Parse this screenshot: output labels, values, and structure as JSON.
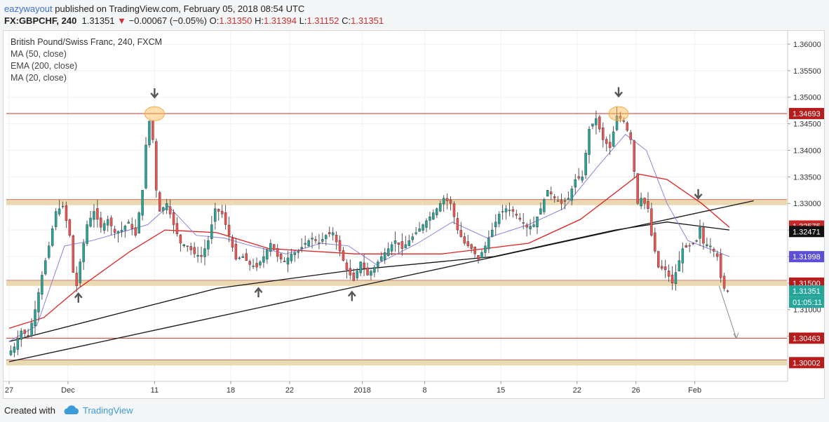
{
  "header": {
    "author": "eazywayout",
    "published_text": "published on TradingView.com, February 05, 2018 08:54 UTC",
    "symbol": "FX:GBPCHF, 240",
    "last": "1.31351",
    "change_arrow": "▼",
    "change": "−0.00067 (−0.05%)",
    "open_label": "O:",
    "open": "1.31350",
    "high_label": "H:",
    "high": "1.31394",
    "low_label": "L:",
    "low": "1.31152",
    "close_label": "C:",
    "close": "1.31351"
  },
  "legend": {
    "title": "British Pound/Swiss Franc, 240, FXCM",
    "ind1": "MA (50, close)",
    "ind2": "EMA (200, close)",
    "ind3": "MA (20, close)"
  },
  "footer": {
    "created_with": "Created with",
    "brand": "TradingView"
  },
  "colors": {
    "bull": "#26a69a",
    "bear": "#ef5350",
    "ma50": "#e02020",
    "ema200": "#111111",
    "ma20": "#8a7fe0",
    "resistance": "#c0392b",
    "zone": "#e8d5a8",
    "trendline": "#222222"
  },
  "chart_data": {
    "type": "candlestick",
    "instrument": "British Pound/Swiss Franc",
    "timeframe": "240",
    "ylim": [
      1.2965,
      1.3625
    ],
    "y_ticks": [
      "1.36000",
      "1.35500",
      "1.35000",
      "1.34500",
      "1.34000",
      "1.33500",
      "1.33000",
      "1.32500",
      "1.32000",
      "1.31500",
      "1.31000",
      "1.30500"
    ],
    "x_ticks": [
      {
        "label": "27",
        "bar": 0
      },
      {
        "label": "Dec",
        "bar": 17
      },
      {
        "label": "11",
        "bar": 42
      },
      {
        "label": "18",
        "bar": 64
      },
      {
        "label": "22",
        "bar": 81
      },
      {
        "label": "2018",
        "bar": 102
      },
      {
        "label": "8",
        "bar": 120
      },
      {
        "label": "15",
        "bar": 142
      },
      {
        "label": "22",
        "bar": 164
      },
      {
        "label": "26",
        "bar": 181
      },
      {
        "label": "Feb",
        "bar": 198
      }
    ],
    "total_bars": 208,
    "price_path": [
      [
        0,
        1.3015
      ],
      [
        2,
        1.303
      ],
      [
        4,
        1.306
      ],
      [
        6,
        1.305
      ],
      [
        8,
        1.31
      ],
      [
        10,
        1.3165
      ],
      [
        12,
        1.322
      ],
      [
        14,
        1.3285
      ],
      [
        16,
        1.3295
      ],
      [
        18,
        1.324
      ],
      [
        19,
        1.317
      ],
      [
        20,
        1.3145
      ],
      [
        21,
        1.319
      ],
      [
        23,
        1.326
      ],
      [
        25,
        1.3285
      ],
      [
        27,
        1.3255
      ],
      [
        29,
        1.327
      ],
      [
        31,
        1.3245
      ],
      [
        33,
        1.325
      ],
      [
        35,
        1.3265
      ],
      [
        37,
        1.324
      ],
      [
        39,
        1.3325
      ],
      [
        40,
        1.341
      ],
      [
        41,
        1.3455
      ],
      [
        42,
        1.342
      ],
      [
        43,
        1.3325
      ],
      [
        44,
        1.3285
      ],
      [
        46,
        1.33
      ],
      [
        48,
        1.326
      ],
      [
        50,
        1.3225
      ],
      [
        52,
        1.322
      ],
      [
        54,
        1.3205
      ],
      [
        56,
        1.32
      ],
      [
        58,
        1.323
      ],
      [
        60,
        1.329
      ],
      [
        62,
        1.328
      ],
      [
        64,
        1.324
      ],
      [
        66,
        1.3195
      ],
      [
        68,
        1.32
      ],
      [
        70,
        1.3185
      ],
      [
        72,
        1.318
      ],
      [
        74,
        1.32
      ],
      [
        76,
        1.3225
      ],
      [
        78,
        1.32
      ],
      [
        80,
        1.319
      ],
      [
        82,
        1.3205
      ],
      [
        84,
        1.321
      ],
      [
        86,
        1.3225
      ],
      [
        88,
        1.3235
      ],
      [
        90,
        1.3225
      ],
      [
        92,
        1.324
      ],
      [
        94,
        1.3245
      ],
      [
        96,
        1.321
      ],
      [
        98,
        1.3175
      ],
      [
        100,
        1.3155
      ],
      [
        102,
        1.319
      ],
      [
        104,
        1.3165
      ],
      [
        106,
        1.318
      ],
      [
        108,
        1.32
      ],
      [
        110,
        1.3215
      ],
      [
        112,
        1.323
      ],
      [
        114,
        1.3215
      ],
      [
        116,
        1.323
      ],
      [
        118,
        1.3245
      ],
      [
        120,
        1.326
      ],
      [
        122,
        1.3275
      ],
      [
        124,
        1.329
      ],
      [
        126,
        1.331
      ],
      [
        128,
        1.33
      ],
      [
        130,
        1.325
      ],
      [
        132,
        1.3225
      ],
      [
        134,
        1.3215
      ],
      [
        136,
        1.3195
      ],
      [
        138,
        1.322
      ],
      [
        140,
        1.325
      ],
      [
        142,
        1.328
      ],
      [
        144,
        1.329
      ],
      [
        146,
        1.3285
      ],
      [
        148,
        1.327
      ],
      [
        150,
        1.3255
      ],
      [
        152,
        1.326
      ],
      [
        154,
        1.329
      ],
      [
        156,
        1.3325
      ],
      [
        158,
        1.331
      ],
      [
        160,
        1.33
      ],
      [
        162,
        1.331
      ],
      [
        164,
        1.3345
      ],
      [
        166,
        1.335
      ],
      [
        168,
        1.344
      ],
      [
        170,
        1.346
      ],
      [
        172,
        1.342
      ],
      [
        174,
        1.3405
      ],
      [
        176,
        1.3465
      ],
      [
        178,
        1.3455
      ],
      [
        180,
        1.342
      ],
      [
        181,
        1.336
      ],
      [
        182,
        1.33
      ],
      [
        183,
        1.331
      ],
      [
        185,
        1.329
      ],
      [
        186,
        1.324
      ],
      [
        188,
        1.318
      ],
      [
        190,
        1.3175
      ],
      [
        192,
        1.315
      ],
      [
        193,
        1.317
      ],
      [
        195,
        1.3215
      ],
      [
        197,
        1.322
      ],
      [
        199,
        1.323
      ],
      [
        200,
        1.3255
      ],
      [
        201,
        1.3225
      ],
      [
        203,
        1.322
      ],
      [
        205,
        1.32
      ],
      [
        206,
        1.316
      ],
      [
        207,
        1.314
      ],
      [
        208,
        1.3135
      ]
    ],
    "ema200_path": [
      [
        0,
        1.304
      ],
      [
        30,
        1.309
      ],
      [
        60,
        1.314
      ],
      [
        100,
        1.3175
      ],
      [
        140,
        1.32
      ],
      [
        175,
        1.325
      ],
      [
        190,
        1.3265
      ],
      [
        208,
        1.325
      ]
    ],
    "ma50_path": [
      [
        0,
        1.3065
      ],
      [
        10,
        1.3085
      ],
      [
        20,
        1.314
      ],
      [
        35,
        1.321
      ],
      [
        45,
        1.325
      ],
      [
        60,
        1.3245
      ],
      [
        75,
        1.3215
      ],
      [
        100,
        1.3205
      ],
      [
        125,
        1.3205
      ],
      [
        150,
        1.3225
      ],
      [
        165,
        1.327
      ],
      [
        175,
        1.332
      ],
      [
        182,
        1.3355
      ],
      [
        190,
        1.3345
      ],
      [
        200,
        1.33
      ],
      [
        208,
        1.3255
      ]
    ],
    "ma20_path": [
      [
        0,
        1.304
      ],
      [
        8,
        1.307
      ],
      [
        16,
        1.322
      ],
      [
        24,
        1.323
      ],
      [
        32,
        1.3245
      ],
      [
        40,
        1.326
      ],
      [
        46,
        1.3295
      ],
      [
        54,
        1.324
      ],
      [
        62,
        1.3235
      ],
      [
        70,
        1.322
      ],
      [
        80,
        1.3205
      ],
      [
        90,
        1.3225
      ],
      [
        98,
        1.322
      ],
      [
        106,
        1.3185
      ],
      [
        118,
        1.3225
      ],
      [
        128,
        1.3265
      ],
      [
        138,
        1.3235
      ],
      [
        150,
        1.326
      ],
      [
        160,
        1.329
      ],
      [
        170,
        1.337
      ],
      [
        178,
        1.343
      ],
      [
        184,
        1.34
      ],
      [
        190,
        1.33
      ],
      [
        196,
        1.323
      ],
      [
        202,
        1.3215
      ],
      [
        208,
        1.32
      ]
    ],
    "trendline": [
      [
        0,
        1.3002
      ],
      [
        215,
        1.3305
      ]
    ],
    "projection_arrow": [
      [
        205,
        1.3145
      ],
      [
        210,
        1.3046
      ]
    ],
    "horizontal_lines": [
      {
        "value": 1.34693,
        "label": "1.34693",
        "kind": "resistance"
      },
      {
        "value": 1.30463,
        "label": "1.30463",
        "kind": "support"
      }
    ],
    "zones": [
      {
        "value": 1.3302,
        "kind": "zone"
      },
      {
        "value": 1.315,
        "label": "1.31500",
        "kind": "zone"
      },
      {
        "value": 1.30002,
        "label": "1.30002",
        "kind": "zone"
      }
    ],
    "price_labels": [
      {
        "value": 1.32575,
        "label": "1.32575",
        "color": "#c62828"
      },
      {
        "value": 1.32471,
        "label": "1.32471",
        "color": "#111111"
      },
      {
        "value": 1.31998,
        "label": "1.31998",
        "color": "#5c4fd6"
      },
      {
        "value": 1.31351,
        "label": "1.31351",
        "color": "#26a69a",
        "countdown": "01:05:11"
      }
    ],
    "highlights": [
      {
        "bar": 42,
        "value": 1.3469
      },
      {
        "bar": 176,
        "value": 1.3469
      }
    ],
    "down_arrows": [
      {
        "bar": 42,
        "value": 1.3505
      },
      {
        "bar": 176,
        "value": 1.3507
      },
      {
        "bar": 199,
        "value": 1.3315
      }
    ],
    "up_arrows": [
      {
        "bar": 20,
        "value": 1.3125
      },
      {
        "bar": 72,
        "value": 1.3135
      },
      {
        "bar": 99,
        "value": 1.3128
      }
    ]
  }
}
